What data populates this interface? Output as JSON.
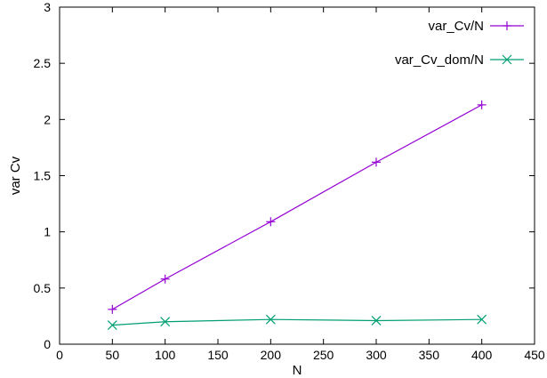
{
  "chart_data": {
    "type": "line",
    "title": "",
    "xlabel": "N",
    "ylabel": "var Cv",
    "xlim": [
      0,
      450
    ],
    "ylim": [
      0,
      3
    ],
    "xticks": [
      0,
      50,
      100,
      150,
      200,
      250,
      300,
      350,
      400,
      450
    ],
    "yticks": [
      0,
      0.5,
      1,
      1.5,
      2,
      2.5,
      3
    ],
    "xtick_labels": [
      "0",
      "50",
      "100",
      "150",
      "200",
      "250",
      "300",
      "350",
      "400",
      "450"
    ],
    "ytick_labels": [
      "0",
      "0.5",
      "1",
      "1.5",
      "2",
      "2.5",
      "3"
    ],
    "grid": false,
    "legend_position": "top-right",
    "series": [
      {
        "name": "var_Cv/N",
        "color": "#9400d3",
        "marker": "plus",
        "x": [
          50,
          100,
          200,
          300,
          400
        ],
        "y": [
          0.31,
          0.58,
          1.09,
          1.62,
          2.13
        ]
      },
      {
        "name": "var_Cv_dom/N",
        "color": "#009e73",
        "marker": "cross",
        "x": [
          50,
          100,
          200,
          300,
          400
        ],
        "y": [
          0.17,
          0.2,
          0.22,
          0.21,
          0.22
        ]
      }
    ]
  }
}
